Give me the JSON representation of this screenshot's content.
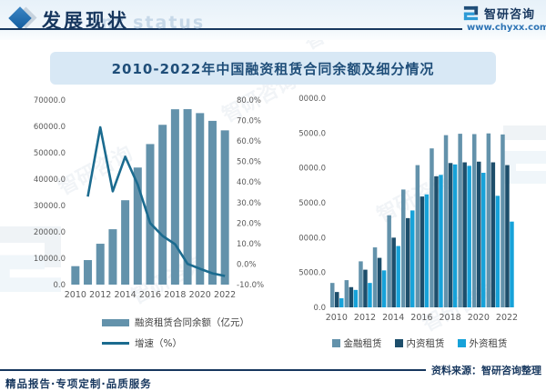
{
  "header": {
    "page_title": "发展现状",
    "page_title_watermark": "ent status",
    "brand_name": "智研咨询",
    "brand_site": "www.chyxx.com"
  },
  "banner": {
    "title": "2010-2022年中国融资租赁合同余额及细分情况"
  },
  "footer": {
    "source_note": "资料来源：智研咨询整理",
    "tagline": "精品报告·专项定制·品质服务"
  },
  "watermark_text": "智研咨询",
  "colors": {
    "accent_dark": "#17375e",
    "title_navy": "#1f4e79",
    "bar_steel": "#6392ab",
    "line_teal": "#1b6b8f",
    "navy_series": "#1d4e6b",
    "cyan_series": "#17a2d9",
    "banner_bg": "#d8e8f5",
    "axis_gray": "#595959"
  },
  "chart_data": [
    {
      "type": "combo_bar_line",
      "categories": [
        2010,
        2011,
        2012,
        2013,
        2014,
        2015,
        2016,
        2017,
        2018,
        2019,
        2020,
        2021,
        2022
      ],
      "x_tick_labels": [
        "2010",
        "2012",
        "2014",
        "2016",
        "2018",
        "2020",
        "2022"
      ],
      "bar_series": {
        "name": "融资租赁合同余额（亿元）",
        "values": [
          7000,
          9300,
          15500,
          21000,
          32000,
          44400,
          53300,
          60600,
          66500,
          66540,
          65040,
          62100,
          58500
        ]
      },
      "line_series": {
        "name": "增速（%）",
        "start_index": 1,
        "values": [
          32.9,
          66.7,
          35.5,
          52.4,
          38.8,
          20.0,
          13.7,
          9.7,
          0.1,
          -2.3,
          -4.5,
          -5.8
        ]
      },
      "left_axis": {
        "min": 0,
        "max": 70000,
        "step": 10000
      },
      "right_axis": {
        "min": -10,
        "max": 80,
        "step": 10,
        "suffix": "%"
      },
      "grid": false,
      "legend_position": "bottom"
    },
    {
      "type": "bar",
      "categories": [
        2010,
        2011,
        2012,
        2013,
        2014,
        2015,
        2016,
        2017,
        2018,
        2019,
        2020,
        2021,
        2022
      ],
      "x_tick_labels": [
        "2010",
        "2012",
        "2014",
        "2016",
        "2018",
        "2020",
        "2022"
      ],
      "series": [
        {
          "name": "金融租赁",
          "color_key": "bar_steel",
          "values": [
            3500,
            3900,
            6600,
            8600,
            13200,
            16900,
            20400,
            22800,
            24700,
            24900,
            24850,
            24950,
            24800
          ]
        },
        {
          "name": "内资租赁",
          "color_key": "navy_series",
          "values": [
            2200,
            2900,
            5400,
            7100,
            10000,
            12800,
            15900,
            18800,
            20700,
            20800,
            20900,
            20800,
            20400
          ]
        },
        {
          "name": "外资租赁",
          "color_key": "cyan_series",
          "values": [
            1300,
            2500,
            3500,
            5300,
            8800,
            13900,
            16200,
            19000,
            20500,
            20300,
            19300,
            16000,
            12300
          ]
        }
      ],
      "y_axis": {
        "min": 0,
        "max": 30000,
        "step": 5000
      },
      "grid": false,
      "legend_position": "bottom"
    }
  ]
}
